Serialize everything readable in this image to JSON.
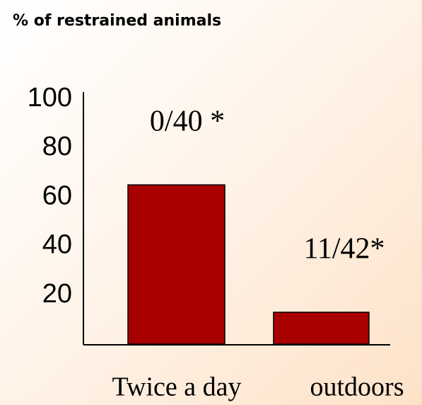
{
  "chart_data": {
    "type": "bar",
    "title": "% of restrained animals",
    "categories": [
      "Twice a day",
      "outdoors"
    ],
    "values": [
      65,
      13
    ],
    "color": "#a80000",
    "ylim": [
      0,
      100
    ],
    "yticks": [
      20,
      40,
      60,
      80,
      100
    ],
    "grid": false,
    "annotations": [
      "0/40 *",
      "11/42*"
    ]
  }
}
